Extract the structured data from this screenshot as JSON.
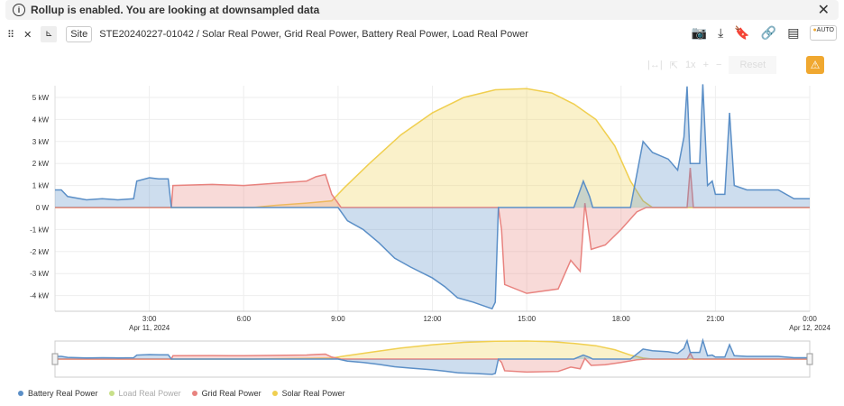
{
  "banner": {
    "text": "Rollup is enabled. You are looking at downsampled data"
  },
  "header": {
    "site_label": "Site",
    "title": "STE20240227-01042 / Solar Real Power, Grid Real Power, Battery Real Power, Load Real Power",
    "auto_label": "AUTO"
  },
  "toolbar": {
    "zoom": "1x",
    "plus": "+",
    "minus": "−",
    "reset": "Reset"
  },
  "colors": {
    "battery": "#5b8fc7",
    "load": "#c8e08a",
    "grid": "#e8837f",
    "solar": "#f0cf50"
  },
  "chart_data": {
    "type": "area",
    "xlabel": "",
    "ylabel": "",
    "x_ticks": [
      {
        "h": 3,
        "label": "3:00"
      },
      {
        "h": 6,
        "label": "6:00"
      },
      {
        "h": 9,
        "label": "9:00"
      },
      {
        "h": 12,
        "label": "12:00"
      },
      {
        "h": 15,
        "label": "15:00"
      },
      {
        "h": 18,
        "label": "18:00"
      },
      {
        "h": 21,
        "label": "21:00"
      },
      {
        "h": 24,
        "label": "0:00"
      }
    ],
    "date_labels": [
      {
        "h": 3,
        "label": "Apr 11, 2024"
      },
      {
        "h": 24,
        "label": "Apr 12, 2024"
      }
    ],
    "y_ticks": [
      "5 kW",
      "4 kW",
      "3 kW",
      "2 kW",
      "1 kW",
      "0 W",
      "-1 kW",
      "-2 kW",
      "-3 kW",
      "-4 kW"
    ],
    "ylim": [
      -4.8,
      5.6
    ],
    "xlim": [
      0,
      24
    ],
    "series": [
      {
        "name": "Battery Real Power",
        "key": "battery",
        "points": [
          [
            0,
            0.8
          ],
          [
            0.2,
            0.8
          ],
          [
            0.4,
            0.5
          ],
          [
            1,
            0.35
          ],
          [
            1.5,
            0.4
          ],
          [
            2,
            0.35
          ],
          [
            2.5,
            0.4
          ],
          [
            2.6,
            1.2
          ],
          [
            3,
            1.35
          ],
          [
            3.3,
            1.3
          ],
          [
            3.6,
            1.3
          ],
          [
            3.7,
            0
          ],
          [
            9,
            0
          ],
          [
            9.3,
            -0.6
          ],
          [
            9.8,
            -1
          ],
          [
            10.3,
            -1.6
          ],
          [
            10.8,
            -2.3
          ],
          [
            11.3,
            -2.7
          ],
          [
            12,
            -3.2
          ],
          [
            12.4,
            -3.6
          ],
          [
            12.8,
            -4.1
          ],
          [
            13.3,
            -4.3
          ],
          [
            13.7,
            -4.5
          ],
          [
            13.9,
            -4.6
          ],
          [
            14,
            -4.3
          ],
          [
            14.1,
            0
          ],
          [
            16.5,
            0
          ],
          [
            16.8,
            1.2
          ],
          [
            17,
            0.5
          ],
          [
            17.1,
            0
          ],
          [
            18.3,
            0
          ],
          [
            18.5,
            1.5
          ],
          [
            18.7,
            3
          ],
          [
            19,
            2.5
          ],
          [
            19.5,
            2.2
          ],
          [
            19.8,
            1.7
          ],
          [
            20,
            3.2
          ],
          [
            20.1,
            5.5
          ],
          [
            20.2,
            2
          ],
          [
            20.5,
            2
          ],
          [
            20.6,
            5.6
          ],
          [
            20.75,
            1
          ],
          [
            20.9,
            1.2
          ],
          [
            21,
            0.6
          ],
          [
            21.3,
            0.6
          ],
          [
            21.45,
            4.3
          ],
          [
            21.6,
            1
          ],
          [
            22,
            0.8
          ],
          [
            23,
            0.8
          ],
          [
            23.5,
            0.4
          ],
          [
            24,
            0.4
          ]
        ]
      },
      {
        "name": "Load Real Power",
        "key": "load",
        "hidden": true,
        "points": []
      },
      {
        "name": "Grid Real Power",
        "key": "grid",
        "points": [
          [
            0,
            0
          ],
          [
            3.7,
            0
          ],
          [
            3.75,
            1
          ],
          [
            5,
            1.05
          ],
          [
            6,
            1
          ],
          [
            7,
            1.1
          ],
          [
            8,
            1.2
          ],
          [
            8.3,
            1.4
          ],
          [
            8.6,
            1.5
          ],
          [
            8.8,
            0.6
          ],
          [
            9.1,
            0
          ],
          [
            14.1,
            0
          ],
          [
            14.2,
            -1
          ],
          [
            14.3,
            -3.5
          ],
          [
            15,
            -3.9
          ],
          [
            16,
            -3.7
          ],
          [
            16.4,
            -2.4
          ],
          [
            16.7,
            -2.9
          ],
          [
            16.85,
            0.2
          ],
          [
            17.05,
            -1.9
          ],
          [
            17.5,
            -1.7
          ],
          [
            18,
            -1
          ],
          [
            18.5,
            -0.2
          ],
          [
            18.8,
            0
          ],
          [
            20.1,
            0
          ],
          [
            20.2,
            1.8
          ],
          [
            20.3,
            0
          ],
          [
            24,
            0
          ]
        ]
      },
      {
        "name": "Solar Real Power",
        "key": "solar",
        "points": [
          [
            0,
            0
          ],
          [
            6.3,
            0
          ],
          [
            7,
            0.1
          ],
          [
            8,
            0.2
          ],
          [
            8.8,
            0.3
          ],
          [
            9.2,
            0.9
          ],
          [
            10,
            2
          ],
          [
            11,
            3.3
          ],
          [
            12,
            4.3
          ],
          [
            13,
            5
          ],
          [
            14,
            5.35
          ],
          [
            15,
            5.4
          ],
          [
            15.8,
            5.2
          ],
          [
            16.5,
            4.7
          ],
          [
            17.2,
            4
          ],
          [
            17.8,
            2.8
          ],
          [
            18.3,
            1.2
          ],
          [
            18.7,
            0.3
          ],
          [
            19,
            0
          ],
          [
            24,
            0
          ]
        ]
      }
    ]
  }
}
